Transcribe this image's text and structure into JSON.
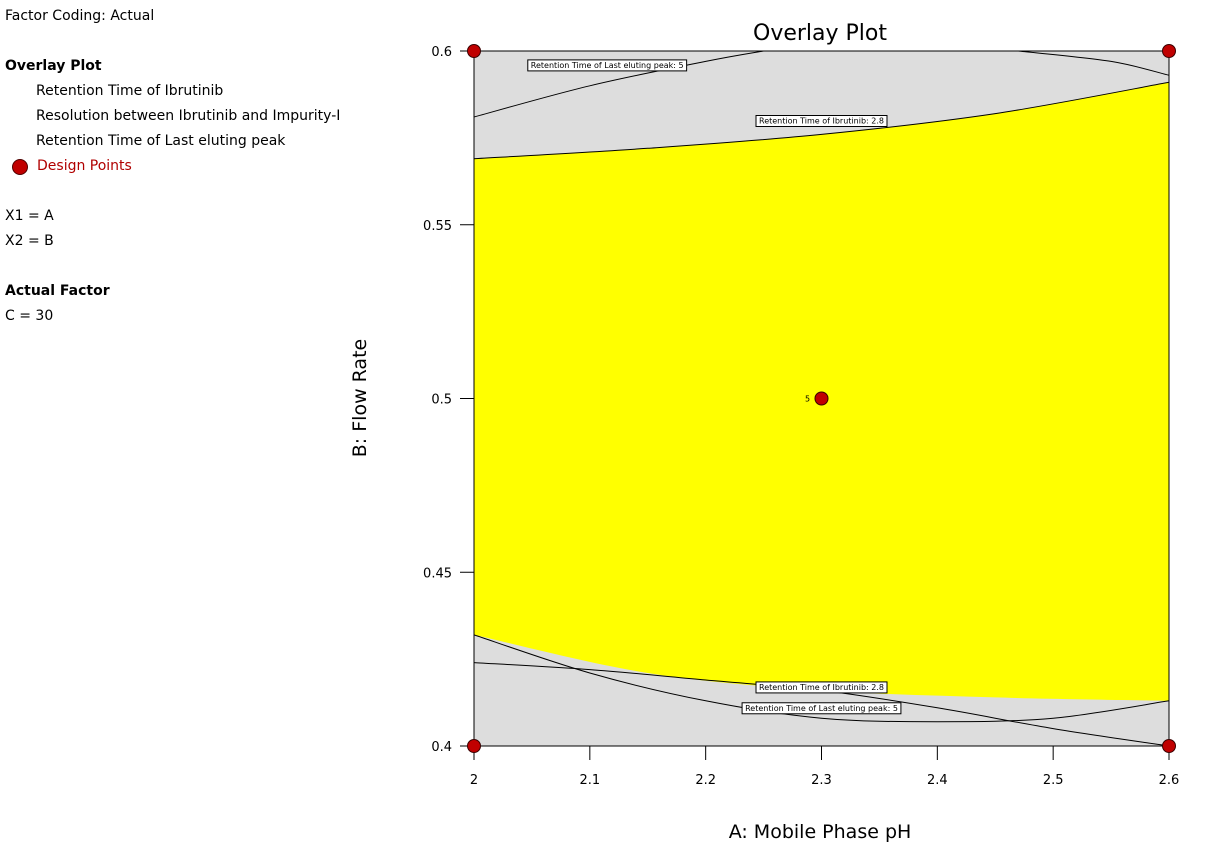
{
  "legend": {
    "factor_coding": "Factor Coding: Actual",
    "heading": "Overlay Plot",
    "items": [
      "Retention Time of Ibrutinib",
      "Resolution between Ibrutinib and Impurity-I",
      "Retention Time of Last eluting peak"
    ],
    "design_points": "Design Points",
    "x1": "X1 = A",
    "x2": "X2 = B",
    "actual_factor_heading": "Actual Factor",
    "actual_factor": "C = 30"
  },
  "colors": {
    "feasible": "#ffff00",
    "infeasible": "#dddddd",
    "design_point": "#c00000"
  },
  "chart_data": {
    "type": "contour",
    "title": "Overlay Plot",
    "xlabel": "A: Mobile Phase pH",
    "ylabel": "B: Flow Rate",
    "xlim": [
      2,
      2.6
    ],
    "ylim": [
      0.4,
      0.6
    ],
    "xticks": [
      "2",
      "2.1",
      "2.2",
      "2.3",
      "2.4",
      "2.5",
      "2.6"
    ],
    "yticks": [
      "0.4",
      "0.45",
      "0.5",
      "0.55",
      "0.6"
    ],
    "feasible_region": {
      "upper_boundary": [
        [
          2,
          0.569
        ],
        [
          2.15,
          0.572
        ],
        [
          2.3,
          0.576
        ],
        [
          2.45,
          0.582
        ],
        [
          2.6,
          0.591
        ]
      ],
      "lower_boundary": [
        [
          2,
          0.432
        ],
        [
          2.15,
          0.421
        ],
        [
          2.3,
          0.416
        ],
        [
          2.45,
          0.414
        ],
        [
          2.6,
          0.413
        ]
      ]
    },
    "contours": [
      {
        "label": "Retention Time of Last eluting peak: 5",
        "label_at": [
          2.115,
          0.596
        ],
        "points": [
          [
            2,
            0.581
          ],
          [
            2.1,
            0.59
          ],
          [
            2.2,
            0.597
          ],
          [
            2.25,
            0.6
          ]
        ]
      },
      {
        "label": "Retention Time of Last eluting peak: 5",
        "label_at": [
          2.3,
          0.411
        ],
        "points": [
          [
            2,
            0.432
          ],
          [
            2.1,
            0.421
          ],
          [
            2.2,
            0.413
          ],
          [
            2.3,
            0.408
          ],
          [
            2.4,
            0.407
          ],
          [
            2.5,
            0.408
          ],
          [
            2.6,
            0.413
          ]
        ]
      },
      {
        "label": "Retention Time of Last eluting peak: 5",
        "label_at": null,
        "points": [
          [
            2.47,
            0.6
          ],
          [
            2.55,
            0.597
          ],
          [
            2.6,
            0.593
          ]
        ]
      },
      {
        "label": "Retention Time of Ibrutinib: 2.8",
        "label_at": [
          2.3,
          0.58
        ],
        "points": [
          [
            2,
            0.569
          ],
          [
            2.15,
            0.572
          ],
          [
            2.3,
            0.576
          ],
          [
            2.45,
            0.582
          ],
          [
            2.6,
            0.591
          ]
        ]
      },
      {
        "label": "Retention Time of Ibrutinib: 2.8",
        "label_at": [
          2.3,
          0.417
        ],
        "points": [
          [
            2,
            0.424
          ],
          [
            2.1,
            0.422
          ],
          [
            2.2,
            0.419
          ],
          [
            2.3,
            0.416
          ],
          [
            2.4,
            0.411
          ],
          [
            2.5,
            0.405
          ],
          [
            2.6,
            0.4
          ]
        ]
      }
    ],
    "design_points": [
      {
        "x": 2,
        "y": 0.6,
        "label": ""
      },
      {
        "x": 2.6,
        "y": 0.6,
        "label": ""
      },
      {
        "x": 2.3,
        "y": 0.5,
        "label": "5"
      },
      {
        "x": 2,
        "y": 0.4,
        "label": ""
      },
      {
        "x": 2.6,
        "y": 0.4,
        "label": ""
      }
    ]
  }
}
